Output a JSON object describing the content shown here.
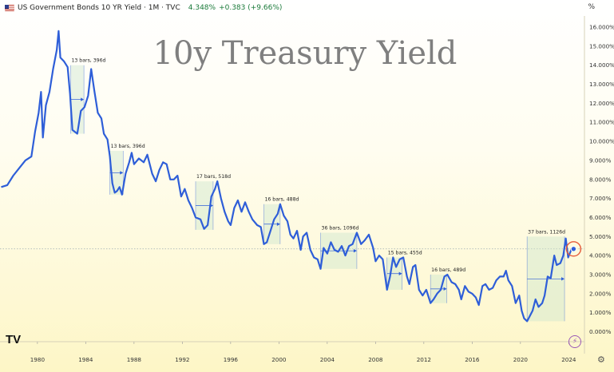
{
  "header": {
    "title": "US Government Bonds 10 YR Yield · 1M · TVC",
    "last_price": "4.348%",
    "change": "+0.383 (+9.66%)",
    "axis_unit": "%"
  },
  "overlay_title": "10y Treasury Yield",
  "icons": {
    "flag": "us-flag-icon",
    "logo": "tradingview-logo-icon",
    "settings": "gear-icon",
    "bolt": "lightning-icon"
  },
  "logo_text": "TV",
  "colors": {
    "line": "#2e5ed8",
    "range_fill": "#cfe6cf",
    "range_stroke": "#2e5ed8",
    "marker_ring": "#e55a3a",
    "price_line": "#8899aa"
  },
  "chart_data": {
    "type": "line",
    "title": "10y Treasury Yield",
    "xlabel": "",
    "ylabel": "",
    "x_ticks": [
      "1980",
      "1984",
      "1988",
      "1992",
      "1996",
      "2000",
      "2004",
      "2008",
      "2012",
      "2016",
      "2020",
      "2024"
    ],
    "y_ticks": [
      "16.000%",
      "15.000%",
      "14.000%",
      "13.000%",
      "12.000%",
      "11.000%",
      "10.000%",
      "9.000%",
      "8.000%",
      "7.000%",
      "6.000%",
      "5.000%",
      "4.000%",
      "3.000%",
      "2.000%",
      "1.000%",
      "0.000%"
    ],
    "xlim": [
      1976.9,
      2025.3
    ],
    "ylim": [
      0,
      16
    ],
    "last_value": 4.348,
    "series": [
      {
        "points": [
          [
            1977.0,
            7.6
          ],
          [
            1977.5,
            7.7
          ],
          [
            1978.0,
            8.2
          ],
          [
            1978.5,
            8.6
          ],
          [
            1979.0,
            9.0
          ],
          [
            1979.5,
            9.2
          ],
          [
            1979.8,
            10.5
          ],
          [
            1980.1,
            11.5
          ],
          [
            1980.3,
            12.6
          ],
          [
            1980.45,
            10.2
          ],
          [
            1980.7,
            11.9
          ],
          [
            1981.0,
            12.6
          ],
          [
            1981.3,
            13.8
          ],
          [
            1981.6,
            14.8
          ],
          [
            1981.75,
            15.8
          ],
          [
            1981.9,
            14.4
          ],
          [
            1982.2,
            14.2
          ],
          [
            1982.5,
            13.9
          ],
          [
            1982.7,
            12.5
          ],
          [
            1982.9,
            10.6
          ],
          [
            1983.3,
            10.4
          ],
          [
            1983.6,
            11.6
          ],
          [
            1983.9,
            11.8
          ],
          [
            1984.2,
            12.4
          ],
          [
            1984.45,
            13.8
          ],
          [
            1984.7,
            12.7
          ],
          [
            1985.0,
            11.5
          ],
          [
            1985.3,
            11.2
          ],
          [
            1985.5,
            10.4
          ],
          [
            1985.8,
            10.1
          ],
          [
            1986.0,
            9.2
          ],
          [
            1986.2,
            7.8
          ],
          [
            1986.4,
            7.3
          ],
          [
            1986.6,
            7.4
          ],
          [
            1986.8,
            7.6
          ],
          [
            1987.0,
            7.2
          ],
          [
            1987.3,
            8.3
          ],
          [
            1987.6,
            8.9
          ],
          [
            1987.8,
            9.4
          ],
          [
            1988.0,
            8.8
          ],
          [
            1988.4,
            9.1
          ],
          [
            1988.8,
            8.9
          ],
          [
            1989.1,
            9.3
          ],
          [
            1989.5,
            8.3
          ],
          [
            1989.8,
            7.9
          ],
          [
            1990.1,
            8.5
          ],
          [
            1990.4,
            8.9
          ],
          [
            1990.7,
            8.8
          ],
          [
            1991.0,
            8.0
          ],
          [
            1991.3,
            8.0
          ],
          [
            1991.6,
            8.2
          ],
          [
            1991.9,
            7.1
          ],
          [
            1992.2,
            7.5
          ],
          [
            1992.5,
            6.9
          ],
          [
            1992.8,
            6.5
          ],
          [
            1993.1,
            6.0
          ],
          [
            1993.5,
            5.9
          ],
          [
            1993.8,
            5.4
          ],
          [
            1994.1,
            5.6
          ],
          [
            1994.4,
            7.1
          ],
          [
            1994.7,
            7.5
          ],
          [
            1994.9,
            7.9
          ],
          [
            1995.2,
            7.0
          ],
          [
            1995.5,
            6.3
          ],
          [
            1995.8,
            5.8
          ],
          [
            1996.0,
            5.6
          ],
          [
            1996.3,
            6.5
          ],
          [
            1996.6,
            6.9
          ],
          [
            1996.9,
            6.3
          ],
          [
            1997.2,
            6.8
          ],
          [
            1997.5,
            6.3
          ],
          [
            1997.8,
            5.9
          ],
          [
            1998.2,
            5.6
          ],
          [
            1998.5,
            5.5
          ],
          [
            1998.75,
            4.6
          ],
          [
            1999.0,
            4.7
          ],
          [
            1999.3,
            5.3
          ],
          [
            1999.6,
            5.9
          ],
          [
            1999.9,
            6.2
          ],
          [
            2000.1,
            6.7
          ],
          [
            2000.4,
            6.1
          ],
          [
            2000.7,
            5.8
          ],
          [
            2000.95,
            5.1
          ],
          [
            2001.2,
            4.9
          ],
          [
            2001.5,
            5.3
          ],
          [
            2001.8,
            4.3
          ],
          [
            2002.0,
            5.0
          ],
          [
            2002.3,
            5.2
          ],
          [
            2002.6,
            4.3
          ],
          [
            2002.9,
            3.9
          ],
          [
            2003.2,
            3.8
          ],
          [
            2003.45,
            3.3
          ],
          [
            2003.7,
            4.4
          ],
          [
            2004.0,
            4.1
          ],
          [
            2004.3,
            4.7
          ],
          [
            2004.6,
            4.3
          ],
          [
            2004.9,
            4.2
          ],
          [
            2005.2,
            4.5
          ],
          [
            2005.5,
            4.0
          ],
          [
            2005.8,
            4.5
          ],
          [
            2006.1,
            4.6
          ],
          [
            2006.45,
            5.2
          ],
          [
            2006.8,
            4.6
          ],
          [
            2007.1,
            4.8
          ],
          [
            2007.45,
            5.1
          ],
          [
            2007.8,
            4.4
          ],
          [
            2008.0,
            3.7
          ],
          [
            2008.3,
            4.0
          ],
          [
            2008.6,
            3.8
          ],
          [
            2008.95,
            2.2
          ],
          [
            2009.2,
            2.9
          ],
          [
            2009.45,
            3.9
          ],
          [
            2009.7,
            3.4
          ],
          [
            2010.0,
            3.8
          ],
          [
            2010.3,
            3.9
          ],
          [
            2010.6,
            2.9
          ],
          [
            2010.8,
            2.5
          ],
          [
            2011.1,
            3.4
          ],
          [
            2011.3,
            3.5
          ],
          [
            2011.6,
            2.2
          ],
          [
            2011.9,
            1.9
          ],
          [
            2012.2,
            2.2
          ],
          [
            2012.55,
            1.5
          ],
          [
            2012.8,
            1.7
          ],
          [
            2013.1,
            2.0
          ],
          [
            2013.4,
            2.2
          ],
          [
            2013.7,
            2.9
          ],
          [
            2013.95,
            3.0
          ],
          [
            2014.3,
            2.6
          ],
          [
            2014.6,
            2.5
          ],
          [
            2014.9,
            2.2
          ],
          [
            2015.1,
            1.7
          ],
          [
            2015.4,
            2.4
          ],
          [
            2015.7,
            2.1
          ],
          [
            2016.0,
            2.0
          ],
          [
            2016.3,
            1.8
          ],
          [
            2016.55,
            1.4
          ],
          [
            2016.85,
            2.4
          ],
          [
            2017.1,
            2.5
          ],
          [
            2017.4,
            2.2
          ],
          [
            2017.7,
            2.3
          ],
          [
            2018.0,
            2.7
          ],
          [
            2018.3,
            2.9
          ],
          [
            2018.6,
            2.9
          ],
          [
            2018.8,
            3.2
          ],
          [
            2019.0,
            2.7
          ],
          [
            2019.3,
            2.4
          ],
          [
            2019.6,
            1.5
          ],
          [
            2019.9,
            1.9
          ],
          [
            2020.1,
            1.1
          ],
          [
            2020.3,
            0.7
          ],
          [
            2020.55,
            0.55
          ],
          [
            2020.8,
            0.85
          ],
          [
            2021.0,
            1.1
          ],
          [
            2021.25,
            1.7
          ],
          [
            2021.5,
            1.3
          ],
          [
            2021.8,
            1.5
          ],
          [
            2022.0,
            1.9
          ],
          [
            2022.25,
            2.9
          ],
          [
            2022.5,
            2.8
          ],
          [
            2022.8,
            4.0
          ],
          [
            2023.0,
            3.5
          ],
          [
            2023.3,
            3.6
          ],
          [
            2023.55,
            4.0
          ],
          [
            2023.75,
            4.9
          ],
          [
            2023.95,
            3.9
          ],
          [
            2024.2,
            4.3
          ],
          [
            2024.4,
            4.348
          ]
        ]
      }
    ],
    "annotations": [
      {
        "label": "13 bars, 396d",
        "start": [
          1982.75,
          10.4
        ],
        "end": [
          1983.85,
          14.0
        ]
      },
      {
        "label": "13 bars, 396d",
        "start": [
          1986.0,
          7.2
        ],
        "end": [
          1987.1,
          9.5
        ]
      },
      {
        "label": "17 bars, 518d",
        "start": [
          1993.1,
          5.35
        ],
        "end": [
          1994.55,
          7.9
        ]
      },
      {
        "label": "16 bars, 488d",
        "start": [
          1998.75,
          4.6
        ],
        "end": [
          2000.1,
          6.7
        ]
      },
      {
        "label": "36 bars, 1096d",
        "start": [
          2003.45,
          3.3
        ],
        "end": [
          2006.45,
          5.2
        ]
      },
      {
        "label": "15 bars, 455d",
        "start": [
          2008.95,
          2.2
        ],
        "end": [
          2010.2,
          3.9
        ]
      },
      {
        "label": "16 bars, 489d",
        "start": [
          2012.55,
          1.5
        ],
        "end": [
          2013.9,
          3.0
        ]
      },
      {
        "label": "37 bars, 1126d",
        "start": [
          2020.55,
          0.55
        ],
        "end": [
          2023.65,
          5.0
        ]
      }
    ]
  }
}
